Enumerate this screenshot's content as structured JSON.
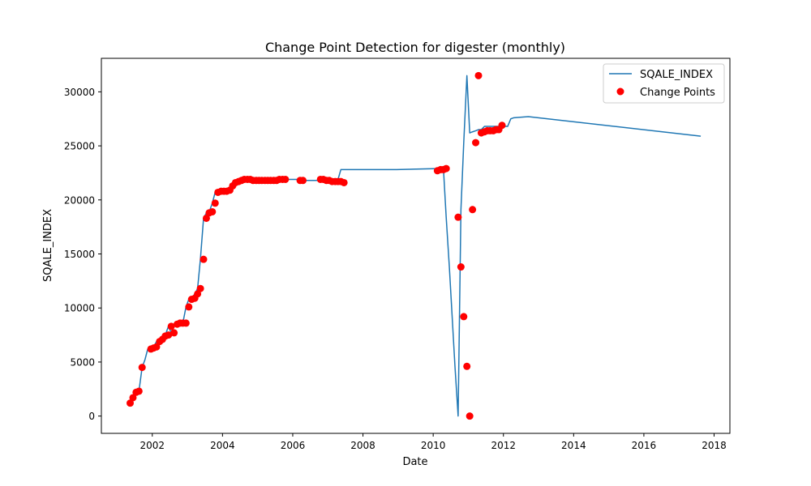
{
  "chart_data": {
    "type": "line",
    "title": "Change Point Detection for digester (monthly)",
    "xlabel": "Date",
    "ylabel": "SQALE_INDEX",
    "xlim": [
      2000.55,
      2018.45
    ],
    "ylim": [
      -1600,
      33100
    ],
    "x_ticks": [
      2002,
      2004,
      2006,
      2008,
      2010,
      2012,
      2014,
      2016,
      2018
    ],
    "y_ticks": [
      0,
      5000,
      10000,
      15000,
      20000,
      25000,
      30000
    ],
    "legend_position": "upper right",
    "colors": {
      "line": "#1f77b4",
      "points": "#ff0000"
    },
    "series": [
      {
        "name": "SQALE_INDEX",
        "kind": "line",
        "x": [
          2001.37,
          2001.45,
          2001.54,
          2001.62,
          2001.71,
          2001.79,
          2001.87,
          2001.96,
          2002.04,
          2002.12,
          2002.21,
          2002.29,
          2002.37,
          2002.46,
          2002.54,
          2002.62,
          2002.71,
          2002.79,
          2002.87,
          2002.96,
          2003.04,
          2003.12,
          2003.21,
          2003.29,
          2003.37,
          2003.46,
          2003.54,
          2003.62,
          2003.71,
          2003.79,
          2003.87,
          2003.96,
          2004.04,
          2004.12,
          2004.21,
          2004.29,
          2004.37,
          2004.46,
          2004.54,
          2004.62,
          2004.71,
          2004.79,
          2004.87,
          2004.96,
          2005.04,
          2005.12,
          2005.21,
          2005.29,
          2005.37,
          2005.46,
          2005.54,
          2005.62,
          2005.71,
          2005.79,
          2006.21,
          2006.29,
          2006.79,
          2006.87,
          2006.96,
          2007.04,
          2007.12,
          2007.21,
          2007.29,
          2007.37,
          2007.46,
          2008.96,
          2010.12,
          2010.21,
          2010.29,
          2010.37,
          2010.46,
          2010.54,
          2010.62,
          2010.71,
          2010.79,
          2010.87,
          2010.96,
          2011.04,
          2011.12,
          2011.21,
          2011.29,
          2011.37,
          2011.46,
          2011.54,
          2011.62,
          2011.71,
          2011.79,
          2011.87,
          2011.96,
          2012.04,
          2012.12,
          2012.21,
          2012.29,
          2012.71,
          2017.62
        ],
        "y": [
          1200,
          1700,
          2200,
          2300,
          4500,
          5200,
          6200,
          6300,
          6400,
          6900,
          7100,
          7400,
          7500,
          8300,
          7700,
          8500,
          8600,
          8600,
          8600,
          10100,
          10800,
          10900,
          11300,
          11800,
          14500,
          18300,
          18800,
          18900,
          19700,
          20700,
          20800,
          20800,
          20800,
          20800,
          20900,
          21300,
          21600,
          21700,
          21800,
          21900,
          21900,
          21900,
          21800,
          21800,
          21800,
          21800,
          21800,
          21800,
          21800,
          21800,
          21800,
          21900,
          21900,
          21900,
          21900,
          21800,
          21800,
          21800,
          21800,
          21700,
          21600,
          21800,
          21900,
          22800,
          22800,
          22800,
          22900,
          22900,
          23000,
          18400,
          13800,
          9200,
          4600,
          0,
          19100,
          25300,
          31500,
          26200,
          26300,
          26400,
          26500,
          26500,
          26800,
          26800,
          26800,
          26800,
          26800,
          26800,
          26800,
          26800,
          26800,
          27500,
          27600,
          27700,
          25900
        ]
      },
      {
        "name": "Change Points",
        "kind": "scatter",
        "x": [
          2001.37,
          2001.45,
          2001.54,
          2001.62,
          2001.71,
          2001.96,
          2002.04,
          2002.12,
          2002.21,
          2002.29,
          2002.37,
          2002.46,
          2002.54,
          2002.62,
          2002.71,
          2002.79,
          2002.87,
          2002.96,
          2003.04,
          2003.12,
          2003.21,
          2003.29,
          2003.37,
          2003.46,
          2003.54,
          2003.62,
          2003.71,
          2003.79,
          2003.87,
          2003.96,
          2004.04,
          2004.12,
          2004.21,
          2004.29,
          2004.37,
          2004.46,
          2004.54,
          2004.62,
          2004.71,
          2004.79,
          2004.87,
          2004.96,
          2005.04,
          2005.12,
          2005.21,
          2005.29,
          2005.37,
          2005.46,
          2005.54,
          2005.62,
          2005.71,
          2005.79,
          2006.21,
          2006.29,
          2006.79,
          2006.87,
          2006.96,
          2007.04,
          2007.12,
          2007.21,
          2007.29,
          2007.37,
          2007.46,
          2010.12,
          2010.21,
          2010.29,
          2010.37,
          2010.71,
          2010.79,
          2010.87,
          2010.96,
          2011.04,
          2011.12,
          2011.21,
          2011.29,
          2011.37,
          2011.46,
          2011.54,
          2011.62,
          2011.71,
          2011.79,
          2011.87,
          2011.96
        ],
        "y": [
          1200,
          1700,
          2200,
          2300,
          4500,
          6200,
          6300,
          6400,
          6900,
          7100,
          7400,
          7500,
          8300,
          7700,
          8500,
          8600,
          8600,
          8600,
          10100,
          10800,
          10900,
          11300,
          11800,
          14500,
          18300,
          18800,
          18900,
          19700,
          20700,
          20800,
          20800,
          20800,
          20900,
          21300,
          21600,
          21700,
          21800,
          21900,
          21900,
          21900,
          21800,
          21800,
          21800,
          21800,
          21800,
          21800,
          21800,
          21800,
          21800,
          21900,
          21900,
          21900,
          21800,
          21800,
          21900,
          21900,
          21800,
          21800,
          21700,
          21700,
          21700,
          21700,
          21600,
          22700,
          22800,
          22800,
          22900,
          18400,
          13800,
          9200,
          4600,
          0,
          19100,
          25300,
          31500,
          26200,
          26300,
          26400,
          26400,
          26400,
          26500,
          26500,
          26900
        ]
      }
    ]
  }
}
